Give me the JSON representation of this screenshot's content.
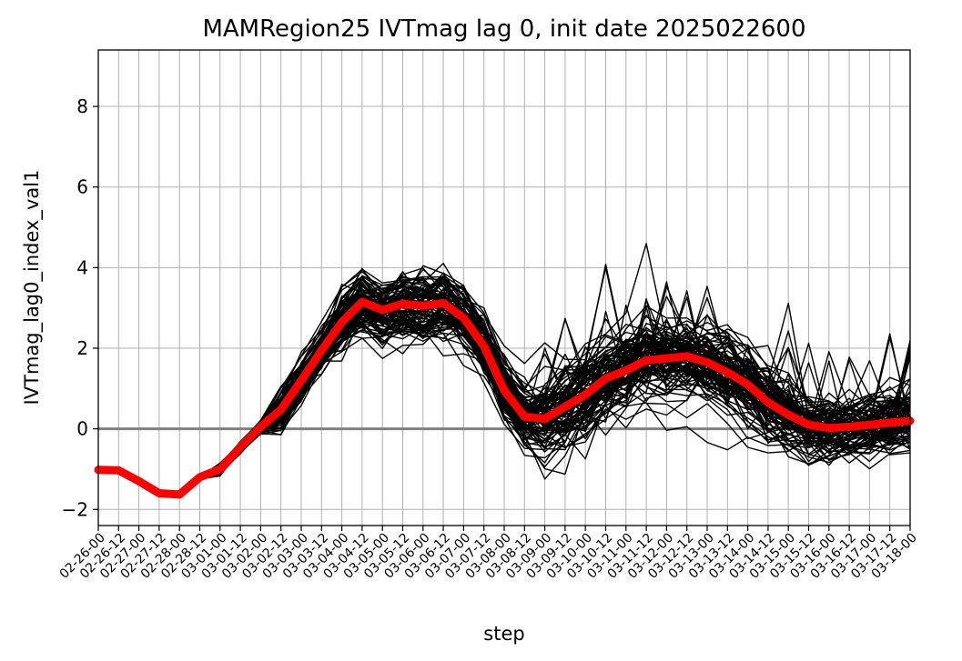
{
  "chart_data": {
    "type": "line",
    "title": "MAMRegion25 IVTmag lag 0, init date 2025022600",
    "xlabel": "step",
    "ylabel": "IVTmag_lag0_index_val1",
    "categories": [
      "02-26-00",
      "02-26-12",
      "02-27-00",
      "02-27-12",
      "02-28-00",
      "02-28-12",
      "03-01-00",
      "03-01-12",
      "03-02-00",
      "03-02-12",
      "03-03-00",
      "03-03-12",
      "03-04-00",
      "03-04-12",
      "03-05-00",
      "03-05-12",
      "03-06-00",
      "03-06-12",
      "03-07-00",
      "03-07-12",
      "03-08-00",
      "03-08-12",
      "03-09-00",
      "03-09-12",
      "03-10-00",
      "03-10-12",
      "03-11-00",
      "03-11-12",
      "03-12-00",
      "03-12-12",
      "03-13-00",
      "03-13-12",
      "03-14-00",
      "03-14-12",
      "03-15-00",
      "03-15-12",
      "03-16-00",
      "03-16-12",
      "03-17-00",
      "03-17-12",
      "03-18-00"
    ],
    "ylim": [
      -2.4,
      9.4
    ],
    "yticks": [
      -2,
      0,
      2,
      4,
      6,
      8
    ],
    "ytick_labels": [
      "−2",
      "0",
      "2",
      "4",
      "6",
      "8"
    ],
    "grid": true,
    "zero_line": 0,
    "ensemble_count": 100,
    "ensemble_color": "#000000",
    "mean_color": "#ff0000",
    "zero_line_color": "#808080",
    "series": [
      {
        "name": "",
        "color": "#ff0000",
        "values": [
          -1.02,
          -1.03,
          -1.3,
          -1.6,
          -1.63,
          -1.2,
          -1.0,
          -0.45,
          0.05,
          0.48,
          1.2,
          1.95,
          2.65,
          3.15,
          2.95,
          3.1,
          3.05,
          3.12,
          2.75,
          2.05,
          0.95,
          0.3,
          0.25,
          0.55,
          0.85,
          1.25,
          1.45,
          1.7,
          1.75,
          1.8,
          1.65,
          1.4,
          1.1,
          0.65,
          0.35,
          0.1,
          0.02,
          0.05,
          0.1,
          0.15,
          0.2
        ]
      }
    ]
  }
}
